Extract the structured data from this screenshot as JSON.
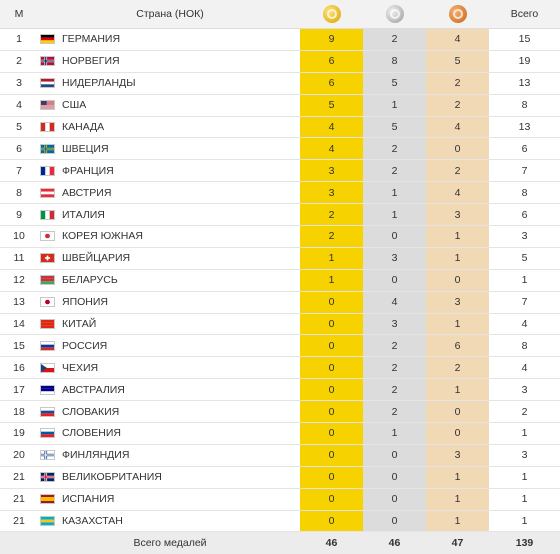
{
  "header": {
    "rank": "М",
    "country": "Страна (НОК)",
    "total": "Всего"
  },
  "medal_icons": {
    "gold": "gold-medal-icon",
    "silver": "silver-medal-icon",
    "bronze": "bronze-medal-icon"
  },
  "rows": [
    {
      "rank": "1",
      "country": "ГЕРМАНИЯ",
      "gold": "9",
      "silver": "2",
      "bronze": "4",
      "total": "15",
      "flag": [
        "#000000",
        "#dd0000",
        "#ffce00"
      ],
      "flagdir": "h"
    },
    {
      "rank": "2",
      "country": "НОРВЕГИЯ",
      "gold": "6",
      "silver": "8",
      "bronze": "5",
      "total": "19",
      "flag": [
        "#ba0c2f",
        "#ffffff",
        "#00205b"
      ],
      "flagdir": "x"
    },
    {
      "rank": "3",
      "country": "НИДЕРЛАНДЫ",
      "gold": "6",
      "silver": "5",
      "bronze": "2",
      "total": "13",
      "flag": [
        "#ae1c28",
        "#ffffff",
        "#21468b"
      ],
      "flagdir": "h"
    },
    {
      "rank": "4",
      "country": "США",
      "gold": "5",
      "silver": "1",
      "bronze": "2",
      "total": "8",
      "flag": [
        "#b22234",
        "#ffffff",
        "#3c3b6e"
      ],
      "flagdir": "us"
    },
    {
      "rank": "5",
      "country": "КАНАДА",
      "gold": "4",
      "silver": "5",
      "bronze": "4",
      "total": "13",
      "flag": [
        "#d52b1e",
        "#ffffff",
        "#d52b1e"
      ],
      "flagdir": "v"
    },
    {
      "rank": "6",
      "country": "ШВЕЦИЯ",
      "gold": "4",
      "silver": "2",
      "bronze": "0",
      "total": "6",
      "flag": [
        "#006aa7",
        "#fecc00",
        "#006aa7"
      ],
      "flagdir": "x"
    },
    {
      "rank": "7",
      "country": "ФРАНЦИЯ",
      "gold": "3",
      "silver": "2",
      "bronze": "2",
      "total": "7",
      "flag": [
        "#002395",
        "#ffffff",
        "#ed2939"
      ],
      "flagdir": "v"
    },
    {
      "rank": "8",
      "country": "АВСТРИЯ",
      "gold": "3",
      "silver": "1",
      "bronze": "4",
      "total": "8",
      "flag": [
        "#ed2939",
        "#ffffff",
        "#ed2939"
      ],
      "flagdir": "h"
    },
    {
      "rank": "9",
      "country": "ИТАЛИЯ",
      "gold": "2",
      "silver": "1",
      "bronze": "3",
      "total": "6",
      "flag": [
        "#009246",
        "#ffffff",
        "#ce2b37"
      ],
      "flagdir": "v"
    },
    {
      "rank": "10",
      "country": "КОРЕЯ ЮЖНАЯ",
      "gold": "2",
      "silver": "0",
      "bronze": "1",
      "total": "3",
      "flag": [
        "#ffffff",
        "#cd2e3a",
        "#ffffff"
      ],
      "flagdir": "dot"
    },
    {
      "rank": "11",
      "country": "ШВЕЙЦАРИЯ",
      "gold": "1",
      "silver": "3",
      "bronze": "1",
      "total": "5",
      "flag": [
        "#d52b1e",
        "#ffffff",
        "#d52b1e"
      ],
      "flagdir": "ch"
    },
    {
      "rank": "12",
      "country": "БЕЛАРУСЬ",
      "gold": "1",
      "silver": "0",
      "bronze": "0",
      "total": "1",
      "flag": [
        "#c8313e",
        "#c8313e",
        "#4aa657"
      ],
      "flagdir": "h"
    },
    {
      "rank": "13",
      "country": "ЯПОНИЯ",
      "gold": "0",
      "silver": "4",
      "bronze": "3",
      "total": "7",
      "flag": [
        "#ffffff",
        "#bc002d",
        "#ffffff"
      ],
      "flagdir": "dot"
    },
    {
      "rank": "14",
      "country": "КИТАЙ",
      "gold": "0",
      "silver": "3",
      "bronze": "1",
      "total": "4",
      "flag": [
        "#de2910",
        "#de2910",
        "#de2910"
      ],
      "flagdir": "h"
    },
    {
      "rank": "15",
      "country": "РОССИЯ",
      "gold": "0",
      "silver": "2",
      "bronze": "6",
      "total": "8",
      "flag": [
        "#ffffff",
        "#0039a6",
        "#d52b1e"
      ],
      "flagdir": "h"
    },
    {
      "rank": "16",
      "country": "ЧЕХИЯ",
      "gold": "0",
      "silver": "2",
      "bronze": "2",
      "total": "4",
      "flag": [
        "#ffffff",
        "#d7141a",
        "#11457e"
      ],
      "flagdir": "cz"
    },
    {
      "rank": "17",
      "country": "АВСТРАЛИЯ",
      "gold": "0",
      "silver": "2",
      "bronze": "1",
      "total": "3",
      "flag": [
        "#00008b",
        "#00008b",
        "#ffffff"
      ],
      "flagdir": "h"
    },
    {
      "rank": "18",
      "country": "СЛОВАКИЯ",
      "gold": "0",
      "silver": "2",
      "bronze": "0",
      "total": "2",
      "flag": [
        "#ffffff",
        "#0b4ea2",
        "#ee1c25"
      ],
      "flagdir": "h"
    },
    {
      "rank": "19",
      "country": "СЛОВЕНИЯ",
      "gold": "0",
      "silver": "1",
      "bronze": "0",
      "total": "1",
      "flag": [
        "#ffffff",
        "#005da4",
        "#ed1c24"
      ],
      "flagdir": "h"
    },
    {
      "rank": "20",
      "country": "ФИНЛЯНДИЯ",
      "gold": "0",
      "silver": "0",
      "bronze": "3",
      "total": "3",
      "flag": [
        "#ffffff",
        "#003580",
        "#ffffff"
      ],
      "flagdir": "x"
    },
    {
      "rank": "21",
      "country": "ВЕЛИКОБРИТАНИЯ",
      "gold": "0",
      "silver": "0",
      "bronze": "1",
      "total": "1",
      "flag": [
        "#012169",
        "#ffffff",
        "#c8102e"
      ],
      "flagdir": "x"
    },
    {
      "rank": "21",
      "country": "ИСПАНИЯ",
      "gold": "0",
      "silver": "0",
      "bronze": "1",
      "total": "1",
      "flag": [
        "#aa151b",
        "#f1bf00",
        "#aa151b"
      ],
      "flagdir": "es"
    },
    {
      "rank": "21",
      "country": "КАЗАХСТАН",
      "gold": "0",
      "silver": "0",
      "bronze": "1",
      "total": "1",
      "flag": [
        "#00afca",
        "#fec50c",
        "#00afca"
      ],
      "flagdir": "h"
    }
  ],
  "footer": {
    "label": "Всего медалей",
    "gold": "46",
    "silver": "46",
    "bronze": "47",
    "total": "139"
  }
}
